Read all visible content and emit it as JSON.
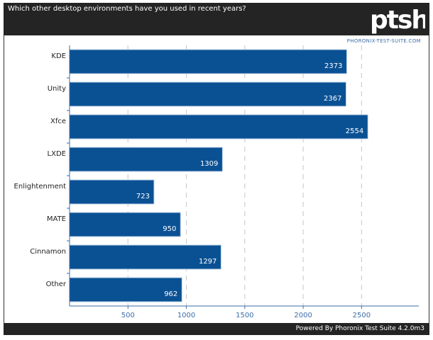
{
  "header": {
    "title": "Which other desktop environments have you used in recent years?",
    "logo_text": "ptsh",
    "source_url": "PHORONIX-TEST-SUITE.COM"
  },
  "footer": {
    "text": "Powered By Phoronix Test Suite 4.2.0m3"
  },
  "colors": {
    "bar": "#0a5194",
    "bar_border": "#bcd0e6",
    "axis": "#3c6ea8",
    "grid": "#cfcfcf",
    "header_bg": "#242424"
  },
  "chart_data": {
    "type": "bar",
    "orientation": "horizontal",
    "categories": [
      "KDE",
      "Unity",
      "Xfce",
      "LXDE",
      "Enlightenment",
      "MATE",
      "Cinnamon",
      "Other"
    ],
    "values": [
      2373,
      2367,
      2554,
      1309,
      723,
      950,
      1297,
      962
    ],
    "title": "Which other desktop environments have you used in recent years?",
    "xlim": [
      0,
      2990
    ],
    "xticks": [
      500,
      1000,
      1500,
      2000,
      2500
    ],
    "grid": true,
    "legend": "none"
  }
}
